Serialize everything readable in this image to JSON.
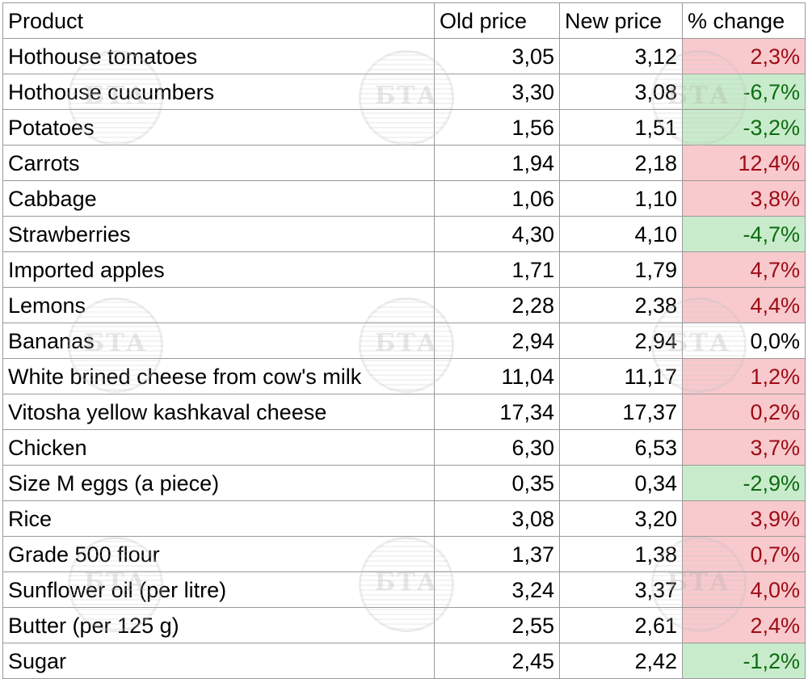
{
  "table": {
    "headers": [
      "Product",
      "Old price",
      "New price",
      "% change"
    ],
    "rows": [
      {
        "product": "Hothouse tomatoes",
        "old": "3,05",
        "new": "3,12",
        "change": "2,3%",
        "trend": "up"
      },
      {
        "product": "Hothouse cucumbers",
        "old": "3,30",
        "new": "3,08",
        "change": "-6,7%",
        "trend": "down"
      },
      {
        "product": "Potatoes",
        "old": "1,56",
        "new": "1,51",
        "change": "-3,2%",
        "trend": "down"
      },
      {
        "product": "Carrots",
        "old": "1,94",
        "new": "2,18",
        "change": "12,4%",
        "trend": "up"
      },
      {
        "product": "Cabbage",
        "old": "1,06",
        "new": "1,10",
        "change": "3,8%",
        "trend": "up"
      },
      {
        "product": "Strawberries",
        "old": "4,30",
        "new": "4,10",
        "change": "-4,7%",
        "trend": "down"
      },
      {
        "product": "Imported apples",
        "old": "1,71",
        "new": "1,79",
        "change": "4,7%",
        "trend": "up"
      },
      {
        "product": "Lemons",
        "old": "2,28",
        "new": "2,38",
        "change": "4,4%",
        "trend": "up"
      },
      {
        "product": "Bananas",
        "old": "2,94",
        "new": "2,94",
        "change": "0,0%",
        "trend": "flat"
      },
      {
        "product": "White brined cheese from cow's milk",
        "old": "11,04",
        "new": "11,17",
        "change": "1,2%",
        "trend": "up"
      },
      {
        "product": "Vitosha yellow kashkaval cheese",
        "old": "17,34",
        "new": "17,37",
        "change": "0,2%",
        "trend": "up"
      },
      {
        "product": "Chicken",
        "old": "6,30",
        "new": "6,53",
        "change": "3,7%",
        "trend": "up"
      },
      {
        "product": "Size M eggs (a piece)",
        "old": "0,35",
        "new": "0,34",
        "change": "-2,9%",
        "trend": "down"
      },
      {
        "product": "Rice",
        "old": "3,08",
        "new": "3,20",
        "change": "3,9%",
        "trend": "up"
      },
      {
        "product": "Grade 500 flour",
        "old": "1,37",
        "new": "1,38",
        "change": "0,7%",
        "trend": "up"
      },
      {
        "product": "Sunflower oil (per litre)",
        "old": "3,24",
        "new": "3,37",
        "change": "4,0%",
        "trend": "up"
      },
      {
        "product": "Butter (per 125 g)",
        "old": "2,55",
        "new": "2,61",
        "change": "2,4%",
        "trend": "up"
      },
      {
        "product": "Sugar",
        "old": "2,45",
        "new": "2,42",
        "change": "-1,2%",
        "trend": "down"
      }
    ]
  },
  "watermark": {
    "text": "БТА",
    "icon": "bta-logo-icon"
  },
  "colors": {
    "increase_bg": "#f8c9cd",
    "increase_text": "#9c0c14",
    "decrease_bg": "#c8eccb",
    "decrease_text": "#0e6b12"
  }
}
